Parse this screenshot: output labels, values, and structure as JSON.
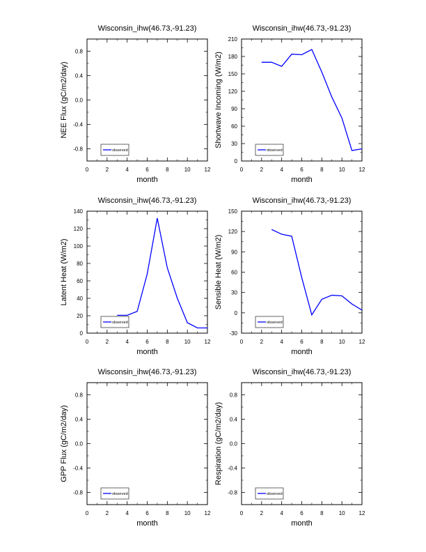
{
  "chart_data": [
    {
      "type": "line",
      "title": "Wisconsin_ihw(46.73,-91.23)",
      "xlabel": "month",
      "ylabel": "NEE Flux (gC/m2/day)",
      "xlim": [
        0,
        12
      ],
      "ylim": [
        -1,
        1
      ],
      "xticks": [
        0,
        2,
        4,
        6,
        8,
        10,
        12
      ],
      "yticks": [
        -0.8,
        -0.4,
        0.0,
        0.4,
        0.8
      ],
      "ytick_labels": [
        "-0.8",
        "-0.4",
        "0.0",
        "0.4",
        "0.8"
      ],
      "legend": "bottom-left",
      "series": [
        {
          "name": "observed",
          "color": "#0000ff",
          "x": [],
          "y": []
        }
      ]
    },
    {
      "type": "line",
      "title": "Wisconsin_ihw(46.73,-91.23)",
      "xlabel": "month",
      "ylabel": "Shortwave Incoming (W/m2)",
      "xlim": [
        0,
        12
      ],
      "ylim": [
        0,
        210
      ],
      "xticks": [
        0,
        2,
        4,
        6,
        8,
        10,
        12
      ],
      "yticks": [
        0,
        30,
        60,
        90,
        120,
        150,
        180,
        210
      ],
      "ytick_labels": [
        "0",
        "30",
        "60",
        "90",
        "120",
        "150",
        "180",
        "210"
      ],
      "legend": "bottom-left",
      "series": [
        {
          "name": "observed",
          "color": "#0000ff",
          "x": [
            2,
            3,
            4,
            5,
            6,
            7,
            8,
            9,
            10,
            11,
            12
          ],
          "y": [
            170,
            170,
            163,
            184,
            183,
            192,
            153,
            110,
            74,
            18,
            21
          ]
        }
      ]
    },
    {
      "type": "line",
      "title": "Wisconsin_ihw(46.73,-91.23)",
      "xlabel": "month",
      "ylabel": "Latent Heat (W/m2)",
      "xlim": [
        0,
        12
      ],
      "ylim": [
        0,
        140
      ],
      "xticks": [
        0,
        2,
        4,
        6,
        8,
        10,
        12
      ],
      "yticks": [
        0,
        20,
        40,
        60,
        80,
        100,
        120,
        140
      ],
      "ytick_labels": [
        "0",
        "20",
        "40",
        "60",
        "80",
        "100",
        "120",
        "140"
      ],
      "legend": "bottom-left",
      "series": [
        {
          "name": "observed",
          "color": "#0000ff",
          "x": [
            3,
            4,
            5,
            6,
            7,
            8,
            9,
            10,
            11,
            12
          ],
          "y": [
            20.5,
            20.5,
            25,
            68,
            132,
            75,
            40,
            12,
            6,
            6
          ]
        }
      ]
    },
    {
      "type": "line",
      "title": "Wisconsin_ihw(46.73,-91.23)",
      "xlabel": "month",
      "ylabel": "Sensible Heat (W/m2)",
      "xlim": [
        0,
        12
      ],
      "ylim": [
        -30,
        150
      ],
      "xticks": [
        0,
        2,
        4,
        6,
        8,
        10,
        12
      ],
      "yticks": [
        -30,
        0,
        30,
        60,
        90,
        120,
        150
      ],
      "ytick_labels": [
        "-30",
        "0",
        "30",
        "60",
        "90",
        "120",
        "150"
      ],
      "legend": "bottom-left",
      "series": [
        {
          "name": "observed",
          "color": "#0000ff",
          "x": [
            3,
            4,
            5,
            6,
            7,
            8,
            9,
            10,
            11,
            12
          ],
          "y": [
            123,
            116,
            113,
            52,
            -3,
            20,
            26,
            25,
            13,
            4
          ]
        }
      ]
    },
    {
      "type": "line",
      "title": "Wisconsin_ihw(46.73,-91.23)",
      "xlabel": "month",
      "ylabel": "GPP Flux (gC/m2/day)",
      "xlim": [
        0,
        12
      ],
      "ylim": [
        -1,
        1
      ],
      "xticks": [
        0,
        2,
        4,
        6,
        8,
        10,
        12
      ],
      "yticks": [
        -0.8,
        -0.4,
        0.0,
        0.4,
        0.8
      ],
      "ytick_labels": [
        "-0.8",
        "-0.4",
        "0.0",
        "0.4",
        "0.8"
      ],
      "legend": "bottom-left",
      "series": [
        {
          "name": "observed",
          "color": "#0000ff",
          "x": [],
          "y": []
        }
      ]
    },
    {
      "type": "line",
      "title": "Wisconsin_ihw(46.73,-91.23)",
      "xlabel": "month",
      "ylabel": "Respiration (gC/m2/day)",
      "xlim": [
        0,
        12
      ],
      "ylim": [
        -1,
        1
      ],
      "xticks": [
        0,
        2,
        4,
        6,
        8,
        10,
        12
      ],
      "yticks": [
        -0.8,
        -0.4,
        0.0,
        0.4,
        0.8
      ],
      "ytick_labels": [
        "-0.8",
        "-0.4",
        "0.0",
        "0.4",
        "0.8"
      ],
      "legend": "bottom-left",
      "series": [
        {
          "name": "observed",
          "color": "#0000ff",
          "x": [],
          "y": []
        }
      ]
    }
  ]
}
